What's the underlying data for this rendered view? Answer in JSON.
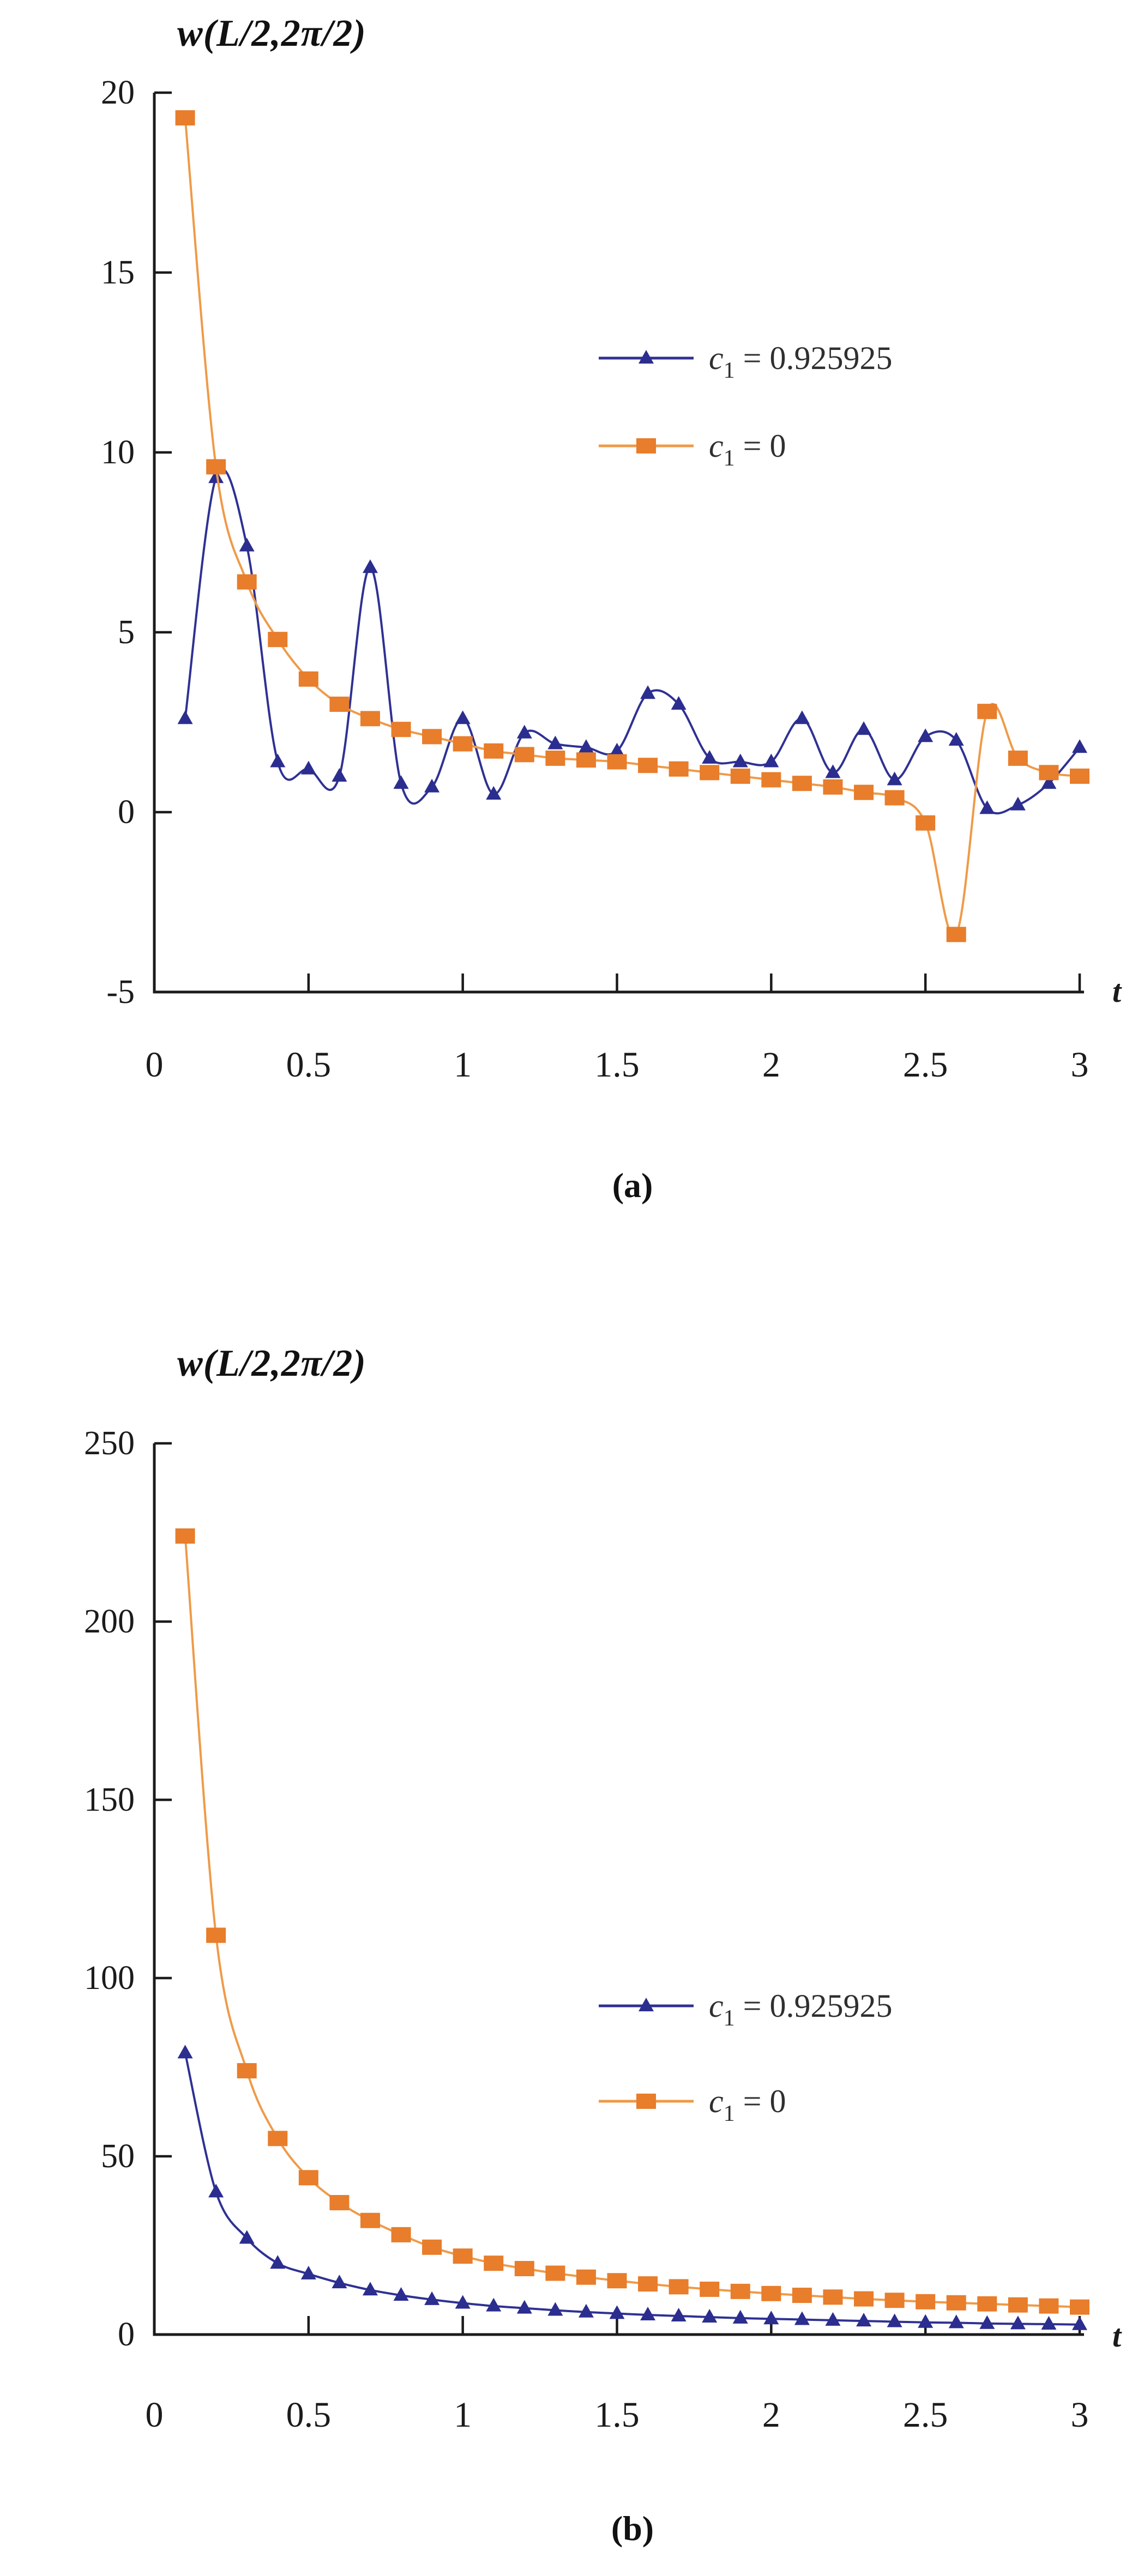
{
  "figure_captions": {
    "a": "(a)",
    "b": "(b)"
  },
  "colors": {
    "series_blue_line": "#2f3193",
    "series_blue_marker": "#2b2d8f",
    "series_orange_line": "#ef9a48",
    "series_orange_marker": "#e87d2b",
    "axis": "#1b1b1b",
    "legend_text": "#2f2f2f",
    "background": "#ffffff"
  },
  "chart_data": [
    {
      "type": "line",
      "id": "a",
      "title": "w(L/2,2π/2)",
      "caption": "(a)",
      "xlabel": "t",
      "ylabel": "w(L/2,2π/2)",
      "xlim": [
        0,
        3
      ],
      "ylim": [
        -5,
        20
      ],
      "x_ticks": [
        "0",
        "0.5",
        "1",
        "1.5",
        "2",
        "2.5",
        "3"
      ],
      "y_ticks": [
        "20",
        "15",
        "10",
        "5",
        "0",
        "-5"
      ],
      "grid": false,
      "legend_position": "inside-upper-right",
      "x": [
        0.1,
        0.2,
        0.3,
        0.4,
        0.5,
        0.6,
        0.7,
        0.8,
        0.9,
        1.0,
        1.1,
        1.2,
        1.3,
        1.4,
        1.5,
        1.6,
        1.7,
        1.8,
        1.9,
        2.0,
        2.1,
        2.2,
        2.3,
        2.4,
        2.5,
        2.6,
        2.7,
        2.8,
        2.9,
        3.0
      ],
      "series": [
        {
          "name": "c1 = 0.925925",
          "legend": {
            "var": "c",
            "sub": "1",
            "rhs": "= 0.925925"
          },
          "marker": "triangle",
          "color_line": "#2f3193",
          "color_marker": "#2b2d8f",
          "values": [
            2.6,
            9.3,
            7.4,
            1.4,
            1.2,
            1.0,
            6.8,
            0.8,
            0.7,
            2.6,
            0.5,
            2.2,
            1.9,
            1.8,
            1.7,
            3.3,
            3.0,
            1.5,
            1.4,
            1.4,
            2.6,
            1.1,
            2.3,
            0.9,
            2.1,
            2.0,
            0.1,
            0.2,
            0.8,
            1.8
          ]
        },
        {
          "name": "c1 = 0",
          "legend": {
            "var": "c",
            "sub": "1",
            "rhs": "= 0"
          },
          "marker": "square",
          "color_line": "#ef9a48",
          "color_marker": "#e87d2b",
          "values": [
            19.3,
            9.6,
            6.4,
            4.8,
            3.7,
            3.0,
            2.6,
            2.3,
            2.1,
            1.9,
            1.7,
            1.6,
            1.5,
            1.45,
            1.4,
            1.3,
            1.2,
            1.1,
            1.0,
            0.9,
            0.8,
            0.7,
            0.55,
            0.4,
            -0.3,
            -3.4,
            2.8,
            1.5,
            1.1,
            1.0
          ]
        }
      ]
    },
    {
      "type": "line",
      "id": "b",
      "title": "w(L/2,2π/2)",
      "caption": "(b)",
      "xlabel": "t",
      "ylabel": "w(L/2,2π/2)",
      "xlim": [
        0,
        3
      ],
      "ylim": [
        0,
        250
      ],
      "x_ticks": [
        "0",
        "0.5",
        "1",
        "1.5",
        "2",
        "2.5",
        "3"
      ],
      "y_ticks": [
        "250",
        "200",
        "150",
        "100",
        "50",
        "0"
      ],
      "grid": false,
      "legend_position": "inside-middle-right",
      "x": [
        0.1,
        0.2,
        0.3,
        0.4,
        0.5,
        0.6,
        0.7,
        0.8,
        0.9,
        1.0,
        1.1,
        1.2,
        1.3,
        1.4,
        1.5,
        1.6,
        1.7,
        1.8,
        1.9,
        2.0,
        2.1,
        2.2,
        2.3,
        2.4,
        2.5,
        2.6,
        2.7,
        2.8,
        2.9,
        3.0
      ],
      "series": [
        {
          "name": "c1 = 0.925925",
          "legend": {
            "var": "c",
            "sub": "1",
            "rhs": "= 0.925925"
          },
          "marker": "triangle",
          "color_line": "#2f3193",
          "color_marker": "#2b2d8f",
          "values": [
            79,
            40,
            27,
            20,
            17,
            14.5,
            12.5,
            11,
            9.8,
            8.8,
            8,
            7.4,
            6.8,
            6.3,
            5.9,
            5.5,
            5.2,
            4.9,
            4.6,
            4.4,
            4.2,
            4.0,
            3.8,
            3.6,
            3.4,
            3.3,
            3.1,
            3.0,
            2.9,
            2.8
          ]
        },
        {
          "name": "c1 = 0",
          "legend": {
            "var": "c",
            "sub": "1",
            "rhs": "= 0"
          },
          "marker": "square",
          "color_line": "#ef9a48",
          "color_marker": "#e87d2b",
          "values": [
            224,
            112,
            74,
            55,
            44,
            37,
            32,
            28,
            24.5,
            22,
            20,
            18.5,
            17.2,
            16.1,
            15.1,
            14.2,
            13.4,
            12.7,
            12.1,
            11.5,
            11,
            10.5,
            10,
            9.6,
            9.2,
            8.9,
            8.6,
            8.3,
            8.0,
            7.7
          ]
        }
      ]
    }
  ]
}
